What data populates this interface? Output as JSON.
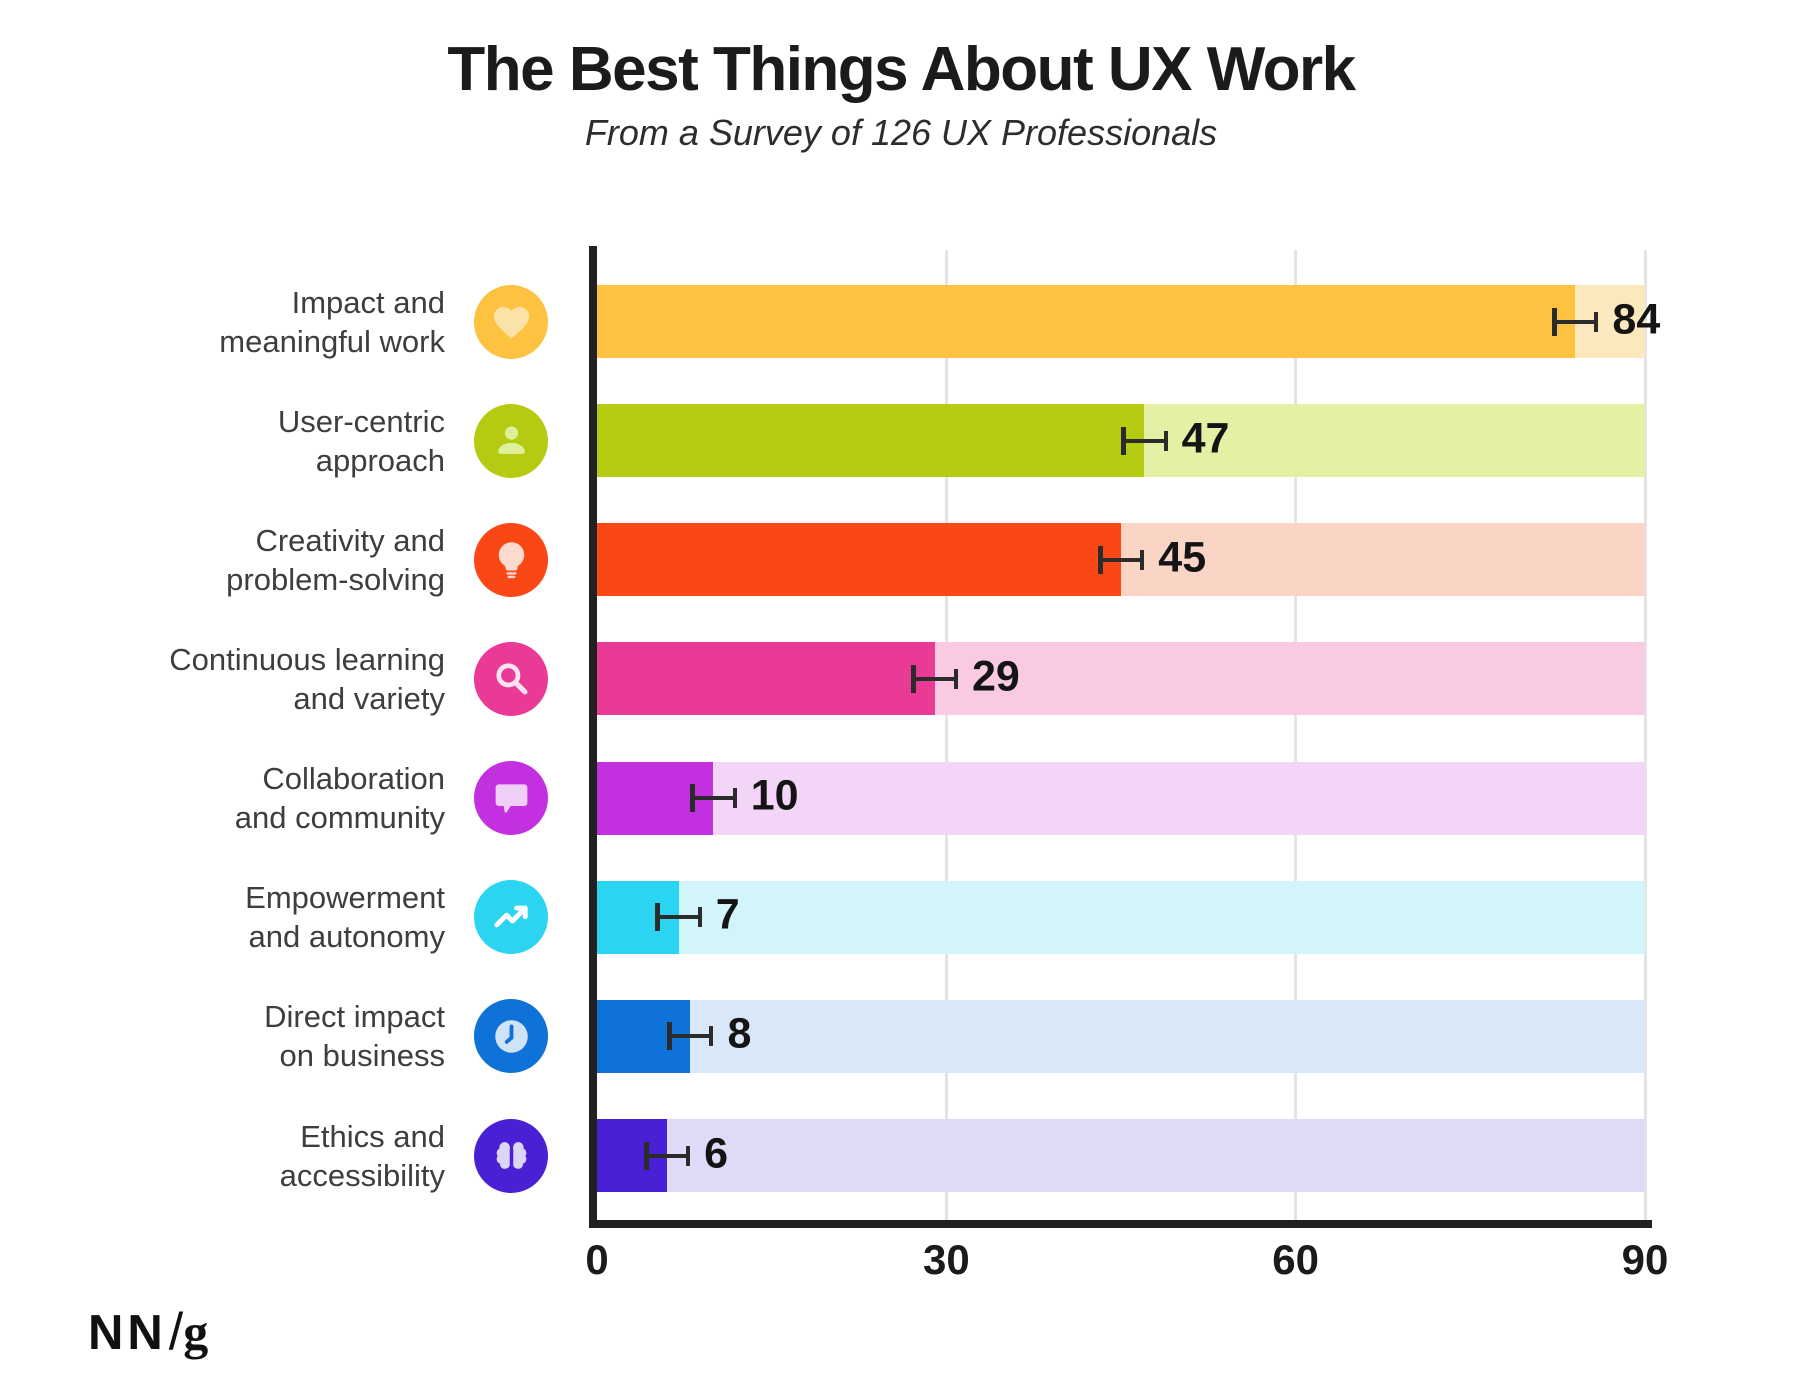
{
  "header": {
    "title": "The Best Things About UX Work",
    "subtitle": "From a Survey of 126 UX Professionals"
  },
  "chart_data": {
    "type": "bar",
    "orientation": "horizontal",
    "title": "The Best Things About UX Work",
    "subtitle": "From a Survey of 126 UX Professionals",
    "xlabel": "",
    "ylabel": "",
    "xlim": [
      0,
      90
    ],
    "x_ticks": [
      0,
      30,
      60,
      90
    ],
    "grid": "vertical-light",
    "error_margin": 2,
    "categories": [
      "Impact and meaningful work",
      "User-centric approach",
      "Creativity and problem-solving",
      "Continuous learning and variety",
      "Collaboration and community",
      "Empowerment and autonomy",
      "Direct impact on business",
      "Ethics and accessibility"
    ],
    "values": [
      84,
      47,
      45,
      29,
      10,
      7,
      8,
      6
    ],
    "rows": [
      {
        "id": "impact-meaningful-work",
        "label_lines": [
          "Impact and",
          "meaningful work"
        ],
        "value": 84,
        "value_label": "84",
        "icon": "heart-icon",
        "bar_color": "#FCC240",
        "track_color": "#FCE8BD",
        "glyph_color": "#FAE3A6"
      },
      {
        "id": "user-centric-approach",
        "label_lines": [
          "User-centric",
          "approach"
        ],
        "value": 47,
        "value_label": "47",
        "icon": "person-icon",
        "bar_color": "#B4CB11",
        "track_color": "#E5F0A4",
        "glyph_color": "#DFEF9A"
      },
      {
        "id": "creativity-problem-solving",
        "label_lines": [
          "Creativity and",
          "problem-solving"
        ],
        "value": 45,
        "value_label": "45",
        "icon": "lightbulb-icon",
        "bar_color": "#F94816",
        "track_color": "#FAD5C5",
        "glyph_color": "#FCDACD"
      },
      {
        "id": "continuous-learning-variety",
        "label_lines": [
          "Continuous learning",
          "and variety"
        ],
        "value": 29,
        "value_label": "29",
        "icon": "magnifier-icon",
        "bar_color": "#E93A95",
        "track_color": "#FACAE3",
        "glyph_color": "#FDE3F0"
      },
      {
        "id": "collaboration-community",
        "label_lines": [
          "Collaboration",
          "and community"
        ],
        "value": 10,
        "value_label": "10",
        "icon": "speech-bubble-icon",
        "bar_color": "#C330E0",
        "track_color": "#F2D5F7",
        "glyph_color": "#F0CFF6"
      },
      {
        "id": "empowerment-autonomy",
        "label_lines": [
          "Empowerment",
          "and autonomy"
        ],
        "value": 7,
        "value_label": "7",
        "icon": "trending-up-icon",
        "bar_color": "#2BD4F0",
        "track_color": "#D1F5FB",
        "glyph_color": "#FFFFFF"
      },
      {
        "id": "direct-impact-business",
        "label_lines": [
          "Direct impact",
          "on business"
        ],
        "value": 8,
        "value_label": "8",
        "icon": "clock-icon",
        "bar_color": "#0F72D8",
        "track_color": "#D8E8F8",
        "glyph_color": "#CFE3F8"
      },
      {
        "id": "ethics-accessibility",
        "label_lines": [
          "Ethics and",
          "accessibility"
        ],
        "value": 6,
        "value_label": "6",
        "icon": "brain-icon",
        "bar_color": "#4A20D5",
        "track_color": "#DFDBF7",
        "glyph_color": "#DCD6F6"
      }
    ]
  },
  "footer": {
    "logo_nn": "NN",
    "logo_slash": "/",
    "logo_g": "g"
  },
  "colors": {
    "background": "#FFFFFF",
    "axis": "#212121",
    "gridline": "#E4E4E4",
    "row_label_text": "#3E3E3E",
    "value_text": "#141414",
    "error_bar": "#2B2B2B",
    "title_text": "#1B1B1B"
  }
}
